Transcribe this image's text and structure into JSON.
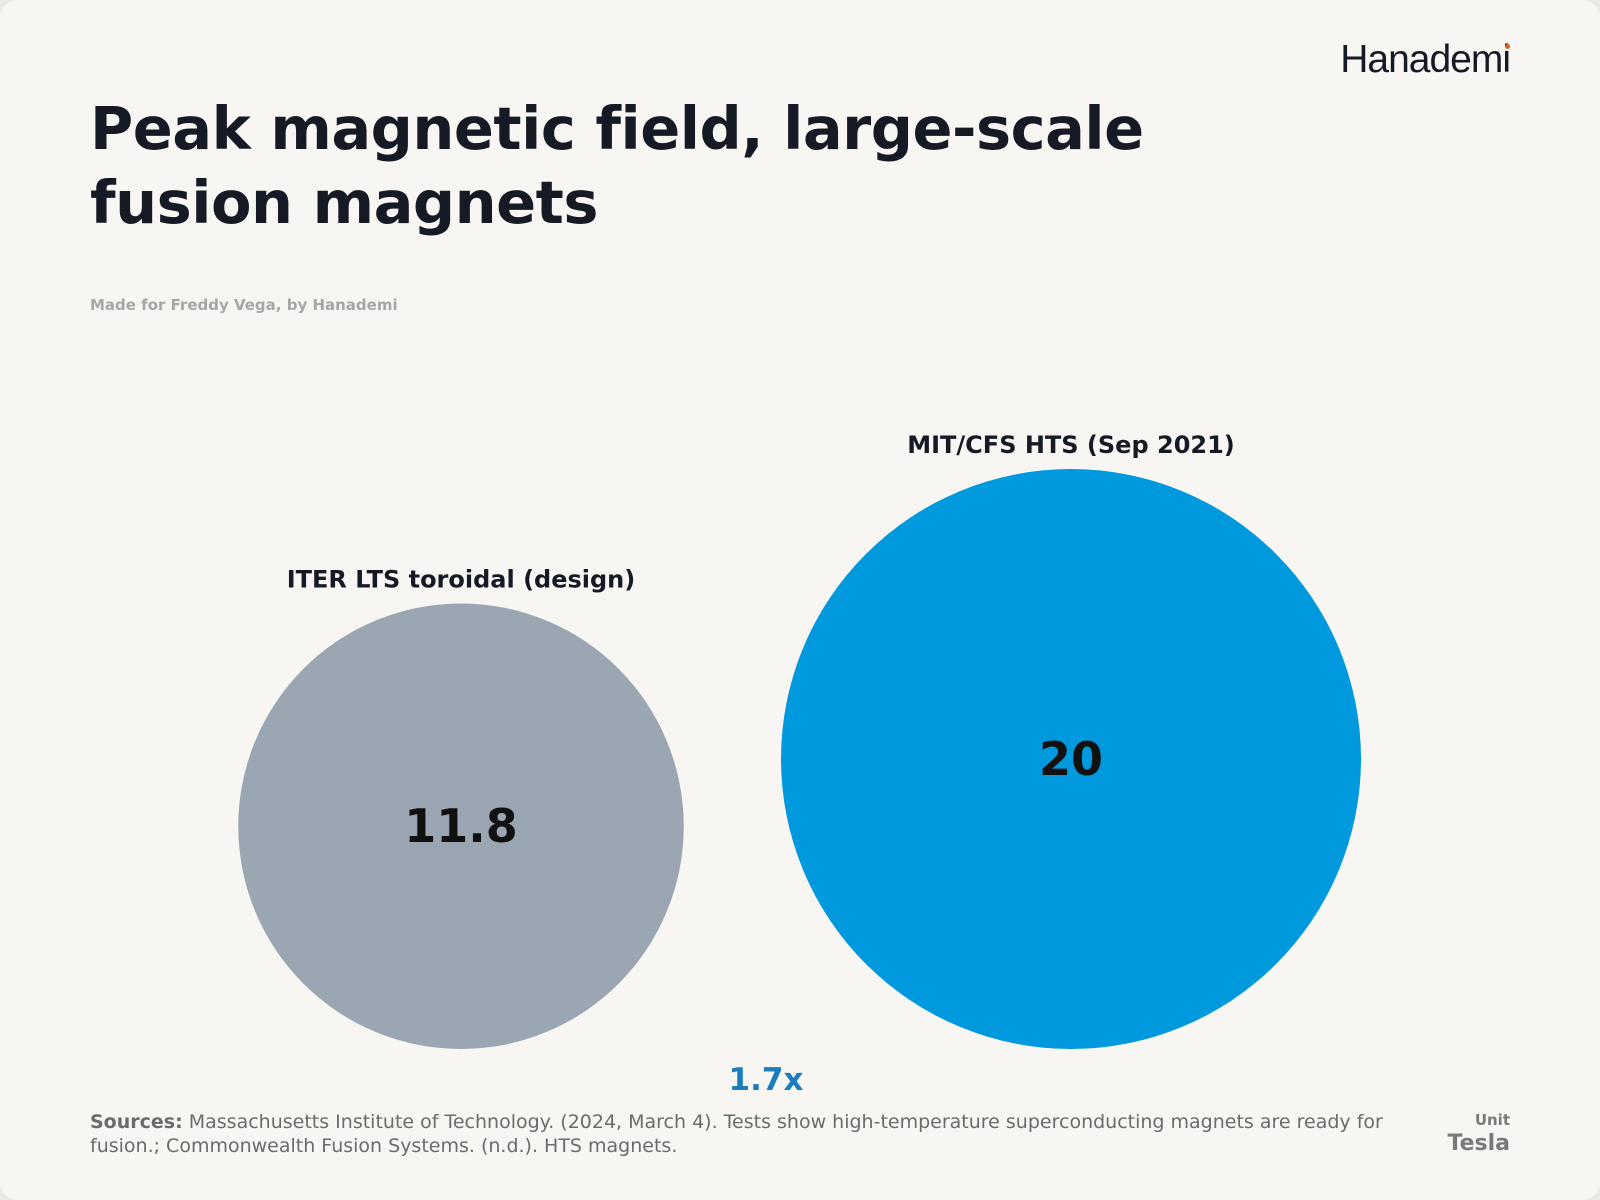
{
  "brand": "Hanademi",
  "title": "Peak magnetic field, large-scale fusion magnets",
  "subtitle": "Made for Freddy Vega, by Hanademi",
  "colors": {
    "iter": "#9ba6b3",
    "mit": "#0099dd",
    "ratio": "#1b7dbb",
    "background": "#f7f6f2"
  },
  "chart_data": {
    "type": "bubble",
    "title": "Peak magnetic field, large-scale fusion magnets",
    "categories": [
      "ITER LTS toroidal (design)",
      "MIT/CFS HTS (Sep 2021)"
    ],
    "values": [
      11.8,
      20
    ],
    "value_labels": [
      "11.8",
      "20"
    ],
    "ratio_label": "1.7x",
    "unit": "Tesla"
  },
  "footer": {
    "sources_label": "Sources:",
    "sources_text": "Massachusetts Institute of Technology. (2024, March 4). Tests show high-temperature superconducting magnets are ready for fusion.; Commonwealth Fusion Systems. (n.d.). HTS magnets.",
    "unit_caption": "Unit",
    "unit_value": "Tesla"
  }
}
